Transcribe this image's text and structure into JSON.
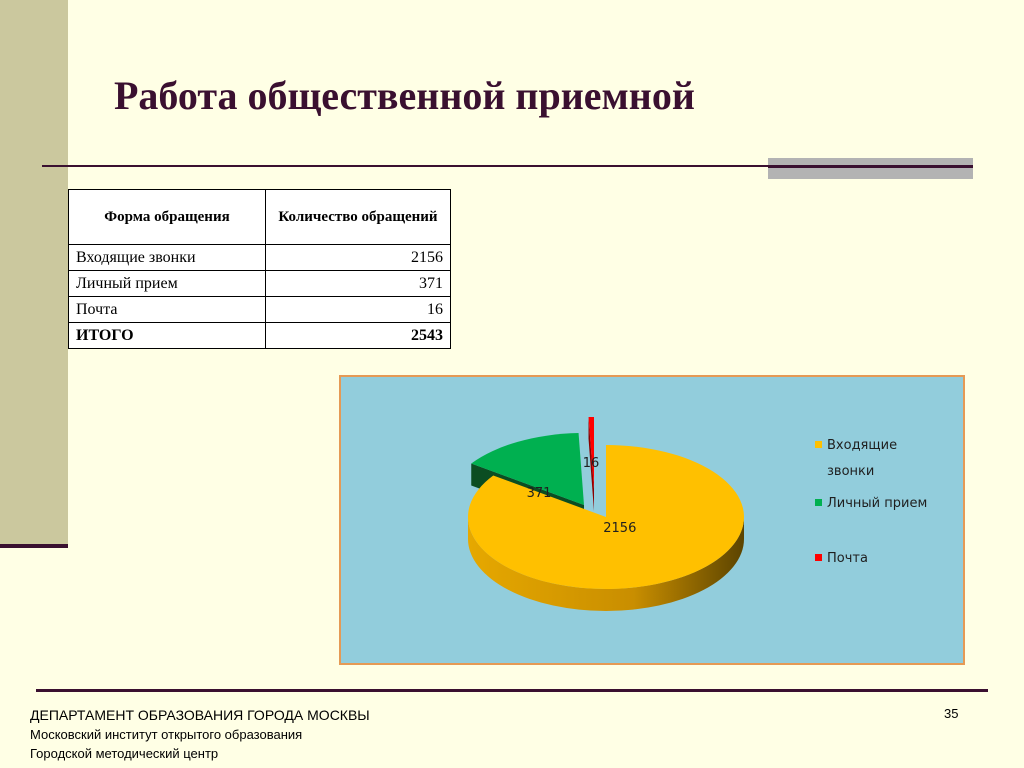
{
  "slide": {
    "title": "Работа общественной приемной",
    "page_number": "35"
  },
  "table": {
    "headers": [
      "Форма обращения",
      "Количество обращений"
    ],
    "rows": [
      {
        "label": "Входящие звонки",
        "value": "2156"
      },
      {
        "label": "Личный прием",
        "value": "371"
      },
      {
        "label": "Почта",
        "value": "16"
      }
    ],
    "total": {
      "label": "ИТОГО",
      "value": "2543"
    }
  },
  "chart_data": {
    "type": "pie",
    "categories": [
      "Входящие звонки",
      "Личный прием",
      "Почта"
    ],
    "values": [
      2156,
      371,
      16
    ],
    "data_labels": [
      "2156",
      "371",
      "16"
    ],
    "colors": [
      "#ffc000",
      "#00b050",
      "#ff0000"
    ],
    "legend_position": "right"
  },
  "footer": {
    "line1": "ДЕПАРТАМЕНТ ОБРАЗОВАНИЯ ГОРОДА МОСКВЫ",
    "line2": "Московский институт открытого образования",
    "line3": "Городской методический центр"
  }
}
